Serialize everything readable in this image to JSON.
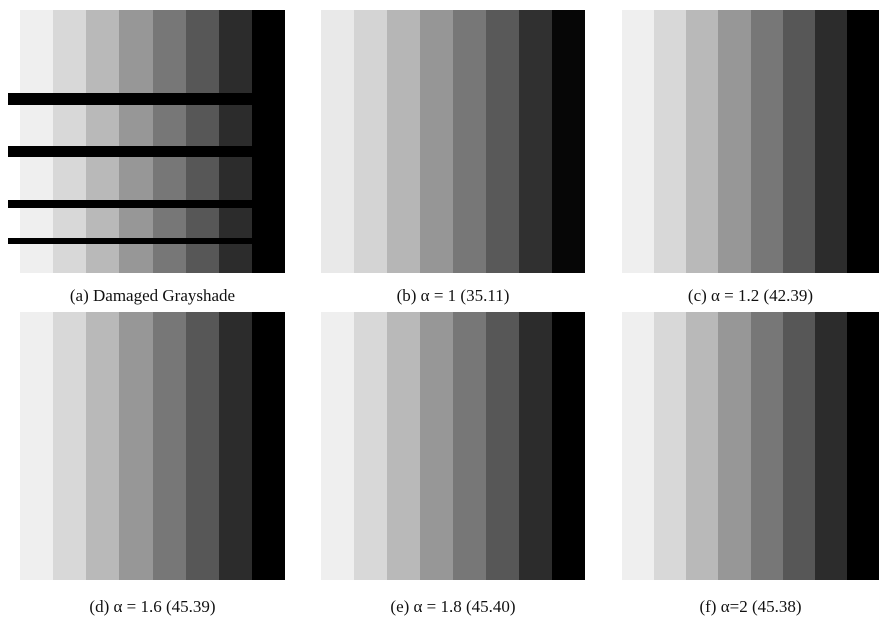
{
  "figure": {
    "panels": [
      {
        "caption": "(a) Damaged Grayshade"
      },
      {
        "caption": "(b) α = 1 (35.11)"
      },
      {
        "caption": "(c) α = 1.2 (42.39)"
      },
      {
        "caption": "(d) α = 1.6 (45.39)"
      },
      {
        "caption": "(e) α = 1.8 (45.40)"
      },
      {
        "caption": "(f) α=2 (45.38)"
      }
    ]
  }
}
